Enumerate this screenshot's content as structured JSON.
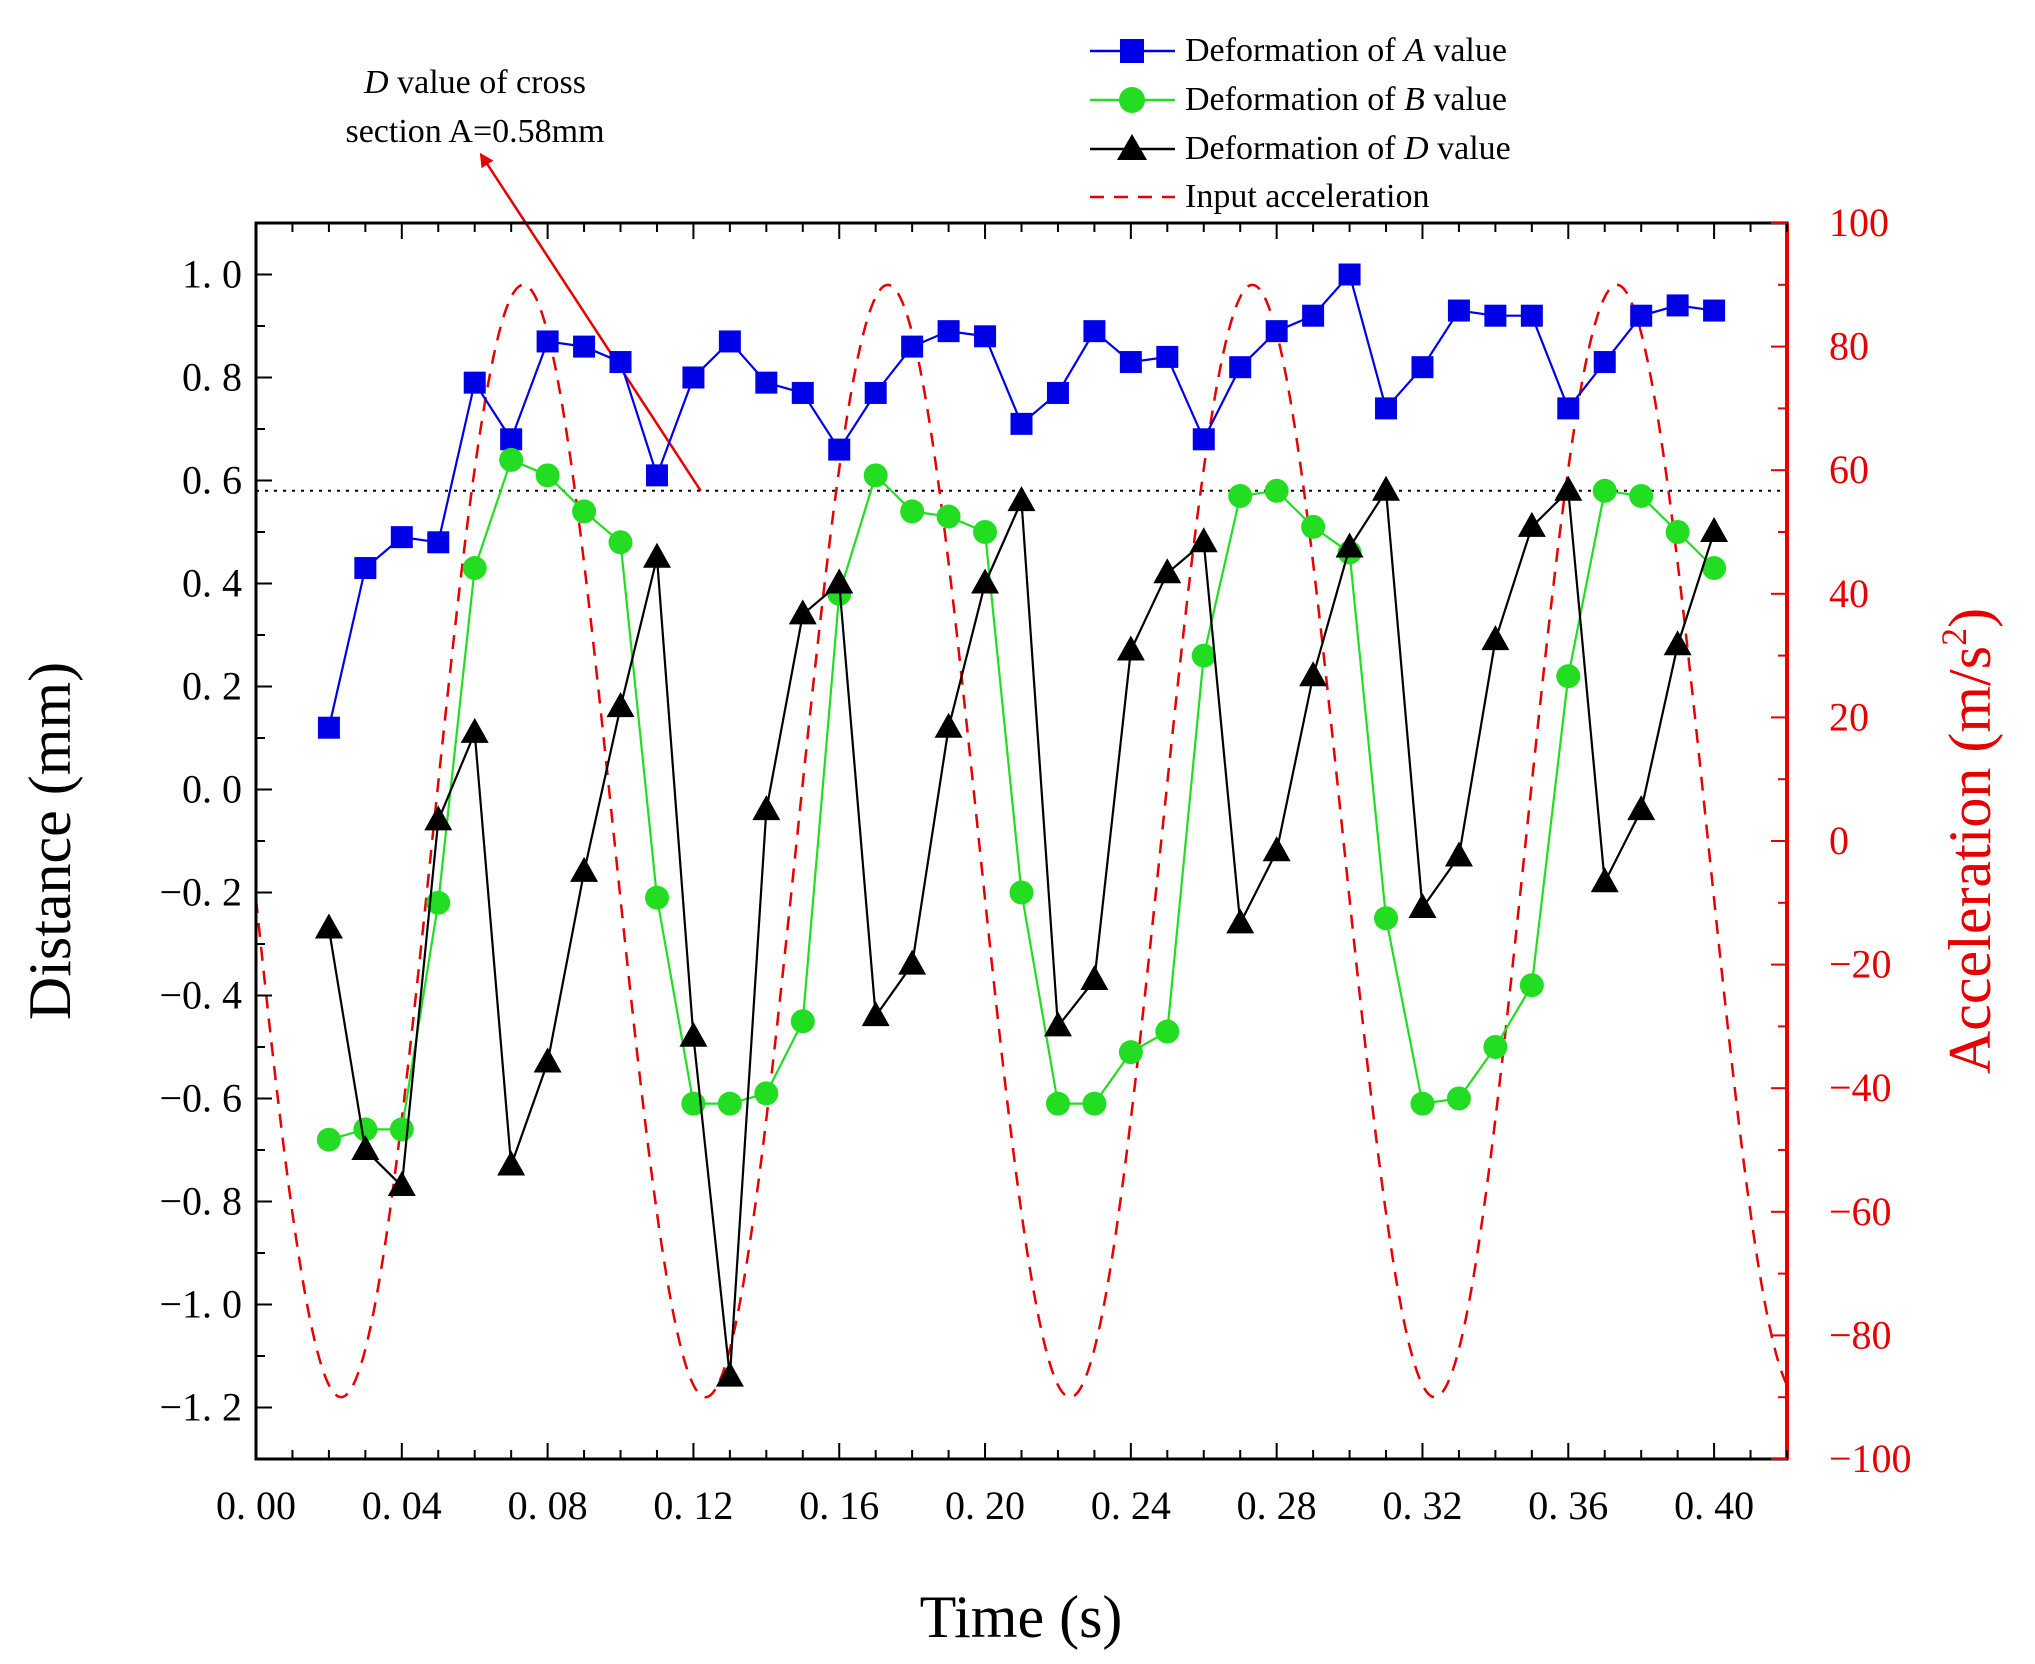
{
  "chart_data": {
    "type": "line",
    "title": "",
    "xlabel": "Time (s)",
    "ylabel_left": "Distance (mm)",
    "ylabel_right": "Acceleration (m/s",
    "ylabel_right_sup": "2",
    "ylabel_right_close": ")",
    "xlim": [
      0.0,
      0.42
    ],
    "ylim_left": [
      -1.3,
      1.1
    ],
    "ylim_right": [
      -100,
      100
    ],
    "x_ticks": [
      "0. 00",
      "0. 04",
      "0. 08",
      "0. 12",
      "0. 16",
      "0. 20",
      "0. 24",
      "0. 28",
      "0. 32",
      "0. 36",
      "0. 40"
    ],
    "x_tick_values": [
      0.0,
      0.04,
      0.08,
      0.12,
      0.16,
      0.2,
      0.24,
      0.28,
      0.32,
      0.36,
      0.4
    ],
    "y_left_ticks": [
      "1. 0",
      "0. 8",
      "0. 6",
      "0. 4",
      "0. 2",
      "0. 0",
      "−0. 2",
      "−0. 4",
      "−0. 6",
      "−0. 8",
      "−1. 0",
      "−1. 2"
    ],
    "y_left_tick_values": [
      1.0,
      0.8,
      0.6,
      0.4,
      0.2,
      0.0,
      -0.2,
      -0.4,
      -0.6,
      -0.8,
      -1.0,
      -1.2
    ],
    "y_right_ticks": [
      "100",
      "80",
      "60",
      "40",
      "20",
      "0",
      "−20",
      "−40",
      "−60",
      "−80",
      "−100"
    ],
    "y_right_tick_values": [
      100,
      80,
      60,
      40,
      20,
      0,
      -20,
      -40,
      -60,
      -80,
      -100
    ],
    "x": [
      0.02,
      0.03,
      0.04,
      0.05,
      0.06,
      0.07,
      0.08,
      0.09,
      0.1,
      0.11,
      0.12,
      0.13,
      0.14,
      0.15,
      0.16,
      0.17,
      0.18,
      0.19,
      0.2,
      0.21,
      0.22,
      0.23,
      0.24,
      0.25,
      0.26,
      0.27,
      0.28,
      0.29,
      0.3,
      0.31,
      0.32,
      0.33,
      0.34,
      0.35,
      0.36,
      0.37,
      0.38,
      0.39,
      0.4
    ],
    "series": [
      {
        "name": "Deformation of A value",
        "legend_prefix": "Deformation of ",
        "legend_var": "A",
        "legend_suffix": " value",
        "color": "#0000e6",
        "marker": "square",
        "axis": "left",
        "values": [
          0.12,
          0.43,
          0.49,
          0.48,
          0.79,
          0.68,
          0.87,
          0.86,
          0.83,
          0.61,
          0.8,
          0.87,
          0.79,
          0.77,
          0.66,
          0.77,
          0.86,
          0.89,
          0.88,
          0.71,
          0.77,
          0.89,
          0.83,
          0.84,
          0.68,
          0.82,
          0.89,
          0.92,
          1.0,
          0.74,
          0.82,
          0.93,
          0.92,
          0.92,
          0.74,
          0.83,
          0.92,
          0.94,
          0.93
        ]
      },
      {
        "name": "Deformation of B value",
        "legend_prefix": "Deformation of ",
        "legend_var": "B",
        "legend_suffix": " value",
        "color": "#22dd22",
        "marker": "circle",
        "axis": "left",
        "values": [
          -0.68,
          -0.66,
          -0.66,
          -0.22,
          0.43,
          0.64,
          0.61,
          0.54,
          0.48,
          -0.21,
          -0.61,
          -0.61,
          -0.59,
          -0.45,
          0.38,
          0.61,
          0.54,
          0.53,
          0.5,
          -0.2,
          -0.61,
          -0.61,
          -0.51,
          -0.47,
          0.26,
          0.57,
          0.58,
          0.51,
          0.46,
          -0.25,
          -0.61,
          -0.6,
          -0.5,
          -0.38,
          0.22,
          0.58,
          0.57,
          0.5,
          0.43
        ]
      },
      {
        "name": "Deformation of D value",
        "legend_prefix": "Deformation of ",
        "legend_var": "D",
        "legend_suffix": " value",
        "color": "#000000",
        "marker": "triangle",
        "axis": "left",
        "values": [
          -0.27,
          -0.7,
          -0.77,
          -0.06,
          0.11,
          -0.73,
          -0.53,
          -0.16,
          0.16,
          0.45,
          -0.48,
          -1.14,
          -0.04,
          0.34,
          0.4,
          -0.44,
          -0.34,
          0.12,
          0.4,
          0.56,
          -0.46,
          -0.37,
          0.27,
          0.42,
          0.48,
          -0.26,
          -0.12,
          0.22,
          0.47,
          0.58,
          -0.23,
          -0.13,
          0.29,
          0.51,
          0.58,
          -0.18,
          -0.04,
          0.28,
          0.5
        ]
      },
      {
        "name": "Input acceleration",
        "color": "#e60000",
        "style": "dashed",
        "axis": "right",
        "function": "sine",
        "amplitude": 90,
        "frequency_hz": 10,
        "phase_deg": 186,
        "t_range": [
          0.0,
          0.42
        ]
      }
    ],
    "reference_line": {
      "y": 0.58,
      "style": "dotted",
      "color": "#000000"
    },
    "annotation": {
      "line1_var": "D",
      "line1_rest": " value of cross",
      "line2": "section A=0.58mm",
      "arrow_from": [
        0.122,
        0.58
      ],
      "arrow_to": [
        0.062,
        1.23
      ],
      "color": "#e60000"
    },
    "legend_placement": "top-right-outside"
  }
}
